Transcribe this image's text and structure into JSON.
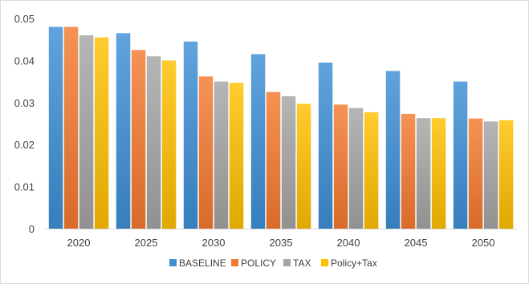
{
  "chart_data": {
    "type": "bar",
    "title": "",
    "xlabel": "",
    "ylabel": "",
    "categories": [
      "2020",
      "2025",
      "2030",
      "2035",
      "2040",
      "2045",
      "2050"
    ],
    "series": [
      {
        "name": "BASELINE",
        "color": "#3d8fd6",
        "values": [
          0.048,
          0.0465,
          0.0445,
          0.0415,
          0.0395,
          0.0375,
          0.035
        ]
      },
      {
        "name": "POLICY",
        "color": "#f47a30",
        "values": [
          0.048,
          0.0425,
          0.0362,
          0.0325,
          0.0295,
          0.0273,
          0.0262
        ]
      },
      {
        "name": "TAX",
        "color": "#a5a5a5",
        "values": [
          0.046,
          0.041,
          0.035,
          0.0315,
          0.0287,
          0.0263,
          0.0255
        ]
      },
      {
        "name": "Policy+Tax",
        "color": "#ffc000",
        "values": [
          0.0455,
          0.04,
          0.0347,
          0.0297,
          0.0277,
          0.0263,
          0.0258
        ]
      }
    ],
    "ylim": [
      0,
      0.05
    ],
    "yticks": [
      "0",
      "0.01",
      "0.02",
      "0.03",
      "0.04",
      "0.05"
    ],
    "grid": false,
    "legend_position": "bottom"
  }
}
